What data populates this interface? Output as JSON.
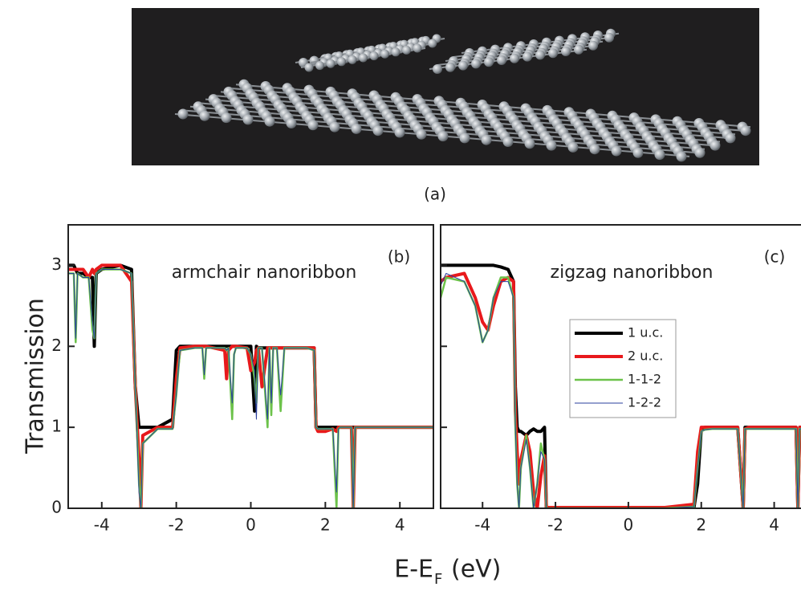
{
  "image_caption": "(a)",
  "xlabel": {
    "text": "E-E",
    "subscript": "F",
    "unit": "(eV)"
  },
  "chart_data": [
    {
      "type": "line",
      "panel_label": "(b)",
      "annotation": "armchair nanoribbon",
      "ylabel": "Transmission",
      "xlim": [
        -4.9,
        4.9
      ],
      "ylim": [
        0,
        3.5
      ],
      "xticks": [
        -4,
        -2,
        0,
        2,
        4
      ],
      "yticks": [
        0,
        1,
        2,
        3
      ],
      "show_ytick_labels": true,
      "x": [
        -4.9,
        -4.75,
        -4.7,
        -4.65,
        -4.5,
        -4.35,
        -4.25,
        -4.2,
        -4.15,
        -4.0,
        -3.5,
        -3.2,
        -3.1,
        -3.0,
        -2.95,
        -2.9,
        -2.5,
        -2.1,
        -2.0,
        -1.9,
        -1.5,
        -1.3,
        -1.25,
        -1.2,
        -0.7,
        -0.65,
        -0.6,
        -0.5,
        -0.45,
        -0.4,
        -0.1,
        0.0,
        0.1,
        0.15,
        0.2,
        0.3,
        0.45,
        0.5,
        0.55,
        0.6,
        0.7,
        0.8,
        0.9,
        1.0,
        1.5,
        1.7,
        1.75,
        1.8,
        2.0,
        2.2,
        2.3,
        2.35,
        2.4,
        2.7,
        2.75,
        2.8,
        3.5,
        4.9
      ],
      "series": [
        {
          "name": "1 u.c.",
          "color": "#000000",
          "width": 4,
          "values": [
            3.0,
            3.0,
            2.95,
            2.9,
            2.9,
            2.85,
            2.85,
            2.0,
            2.9,
            2.95,
            3.0,
            2.95,
            1.5,
            1.0,
            1.0,
            1.0,
            1.0,
            1.1,
            1.95,
            2.0,
            2.0,
            2.0,
            2.0,
            2.0,
            2.0,
            2.0,
            2.0,
            2.0,
            2.0,
            2.0,
            2.0,
            2.0,
            1.2,
            2.0,
            1.98,
            1.98,
            1.98,
            1.98,
            1.98,
            1.98,
            1.98,
            1.98,
            1.98,
            1.98,
            1.98,
            1.98,
            1.0,
            1.0,
            1.0,
            1.0,
            1.0,
            1.0,
            1.0,
            1.0,
            1.0,
            1.0,
            1.0,
            1.0
          ]
        },
        {
          "name": "2 u.c.",
          "color": "#e8191c",
          "width": 4,
          "values": [
            2.95,
            2.95,
            2.95,
            2.95,
            2.95,
            2.85,
            2.95,
            2.9,
            2.95,
            3.0,
            3.0,
            2.8,
            1.5,
            0.6,
            0.0,
            0.9,
            1.0,
            1.0,
            1.6,
            1.98,
            2.0,
            2.0,
            2.0,
            2.0,
            1.95,
            1.6,
            1.95,
            2.0,
            2.0,
            2.0,
            1.98,
            1.7,
            1.8,
            1.95,
            1.98,
            1.5,
            1.98,
            1.98,
            1.98,
            1.98,
            1.98,
            1.98,
            1.98,
            1.98,
            1.98,
            1.98,
            1.0,
            0.95,
            0.95,
            0.98,
            0.95,
            1.0,
            1.0,
            1.0,
            0.0,
            1.0,
            1.0,
            1.0
          ]
        },
        {
          "name": "1-1-2",
          "color": "#6cc24a",
          "width": 2.5,
          "values": [
            2.9,
            2.9,
            2.05,
            2.9,
            2.85,
            2.85,
            2.2,
            2.1,
            2.9,
            2.95,
            2.95,
            2.9,
            1.5,
            0.3,
            0.0,
            0.8,
            0.98,
            0.98,
            1.4,
            1.95,
            1.98,
            1.98,
            1.6,
            1.98,
            1.98,
            1.95,
            1.98,
            1.1,
            1.9,
            1.98,
            1.98,
            1.9,
            1.6,
            1.3,
            1.98,
            1.98,
            1.0,
            1.98,
            1.15,
            1.98,
            1.98,
            1.2,
            1.98,
            1.98,
            1.98,
            1.95,
            1.0,
            0.98,
            0.98,
            0.98,
            0.0,
            0.98,
            1.0,
            1.0,
            0.0,
            1.0,
            1.0,
            1.0
          ]
        },
        {
          "name": "1-2-2",
          "color": "#2a3f9e",
          "width": 1,
          "values": [
            2.9,
            2.9,
            2.1,
            2.9,
            2.85,
            2.85,
            2.3,
            2.1,
            2.9,
            2.95,
            2.95,
            2.9,
            1.5,
            0.2,
            0.0,
            0.8,
            0.98,
            0.98,
            1.4,
            1.95,
            1.98,
            1.98,
            1.65,
            1.98,
            1.98,
            1.95,
            1.98,
            1.3,
            1.9,
            1.98,
            1.98,
            1.9,
            1.7,
            1.1,
            1.98,
            1.98,
            1.1,
            1.98,
            1.3,
            1.98,
            1.98,
            1.4,
            1.98,
            1.98,
            1.98,
            1.95,
            1.0,
            0.98,
            0.98,
            0.98,
            0.2,
            0.98,
            1.0,
            1.0,
            0.0,
            1.0,
            1.0,
            1.0
          ]
        }
      ]
    },
    {
      "type": "line",
      "panel_label": "(c)",
      "annotation": "zigzag nanoribbon",
      "legend": "center",
      "xlim": [
        -5.15,
        5.0
      ],
      "ylim": [
        0,
        3.5
      ],
      "xticks": [
        -4,
        -2,
        0,
        2,
        4
      ],
      "yticks": [
        0,
        1,
        2,
        3
      ],
      "show_ytick_labels": false,
      "x": [
        -5.15,
        -5.0,
        -4.5,
        -4.2,
        -4.0,
        -3.85,
        -3.7,
        -3.5,
        -3.3,
        -3.15,
        -3.1,
        -3.05,
        -3.0,
        -2.95,
        -2.8,
        -2.7,
        -2.6,
        -2.5,
        -2.4,
        -2.3,
        -2.25,
        -2.2,
        -1.0,
        0.0,
        1.0,
        1.8,
        1.9,
        2.0,
        2.1,
        2.3,
        3.0,
        3.15,
        3.2,
        3.3,
        4.0,
        4.6,
        4.65,
        4.7,
        5.0
      ],
      "series": [
        {
          "name": "1 u.c.",
          "color": "#000000",
          "width": 4,
          "values": [
            3.0,
            3.0,
            3.0,
            3.0,
            3.0,
            3.0,
            3.0,
            2.98,
            2.95,
            2.8,
            1.5,
            1.0,
            0.95,
            0.95,
            0.9,
            0.95,
            0.98,
            0.95,
            0.95,
            1.0,
            0.01,
            0.01,
            0.01,
            0.01,
            0.01,
            0.01,
            0.3,
            0.98,
            1.0,
            1.0,
            1.0,
            0.0,
            1.0,
            1.0,
            1.0,
            1.0,
            0.0,
            1.0,
            1.0
          ]
        },
        {
          "name": "2 u.c.",
          "color": "#e8191c",
          "width": 4,
          "values": [
            2.8,
            2.85,
            2.9,
            2.6,
            2.3,
            2.2,
            2.5,
            2.8,
            2.85,
            2.8,
            1.2,
            0.7,
            0.3,
            0.6,
            0.9,
            0.7,
            0.2,
            0.0,
            0.4,
            0.65,
            0.01,
            0.01,
            0.01,
            0.01,
            0.01,
            0.05,
            0.7,
            1.0,
            1.0,
            1.0,
            1.0,
            0.0,
            0.98,
            1.0,
            1.0,
            1.0,
            0.0,
            1.0,
            1.0
          ]
        },
        {
          "name": "1-1-2",
          "color": "#6cc24a",
          "width": 2.5,
          "values": [
            2.6,
            2.85,
            2.8,
            2.5,
            2.05,
            2.2,
            2.6,
            2.85,
            2.85,
            2.6,
            1.0,
            0.3,
            0.0,
            0.5,
            0.9,
            0.5,
            0.0,
            0.3,
            0.8,
            0.6,
            0.0,
            0.0,
            0.0,
            0.0,
            0.0,
            0.02,
            0.5,
            0.95,
            0.97,
            0.98,
            0.98,
            0.0,
            0.98,
            0.98,
            0.98,
            0.98,
            0.0,
            0.98,
            0.98
          ]
        },
        {
          "name": "1-2-2",
          "color": "#2a3f9e",
          "width": 1,
          "values": [
            2.75,
            2.9,
            2.8,
            2.5,
            2.05,
            2.2,
            2.6,
            2.8,
            2.8,
            2.6,
            1.0,
            0.3,
            0.0,
            0.5,
            0.85,
            0.5,
            0.0,
            0.3,
            0.7,
            0.6,
            0.0,
            0.0,
            0.0,
            0.0,
            0.0,
            0.02,
            0.5,
            0.95,
            0.97,
            0.98,
            0.98,
            0.0,
            0.98,
            0.98,
            0.98,
            0.98,
            0.0,
            0.98,
            0.98
          ]
        }
      ]
    }
  ]
}
